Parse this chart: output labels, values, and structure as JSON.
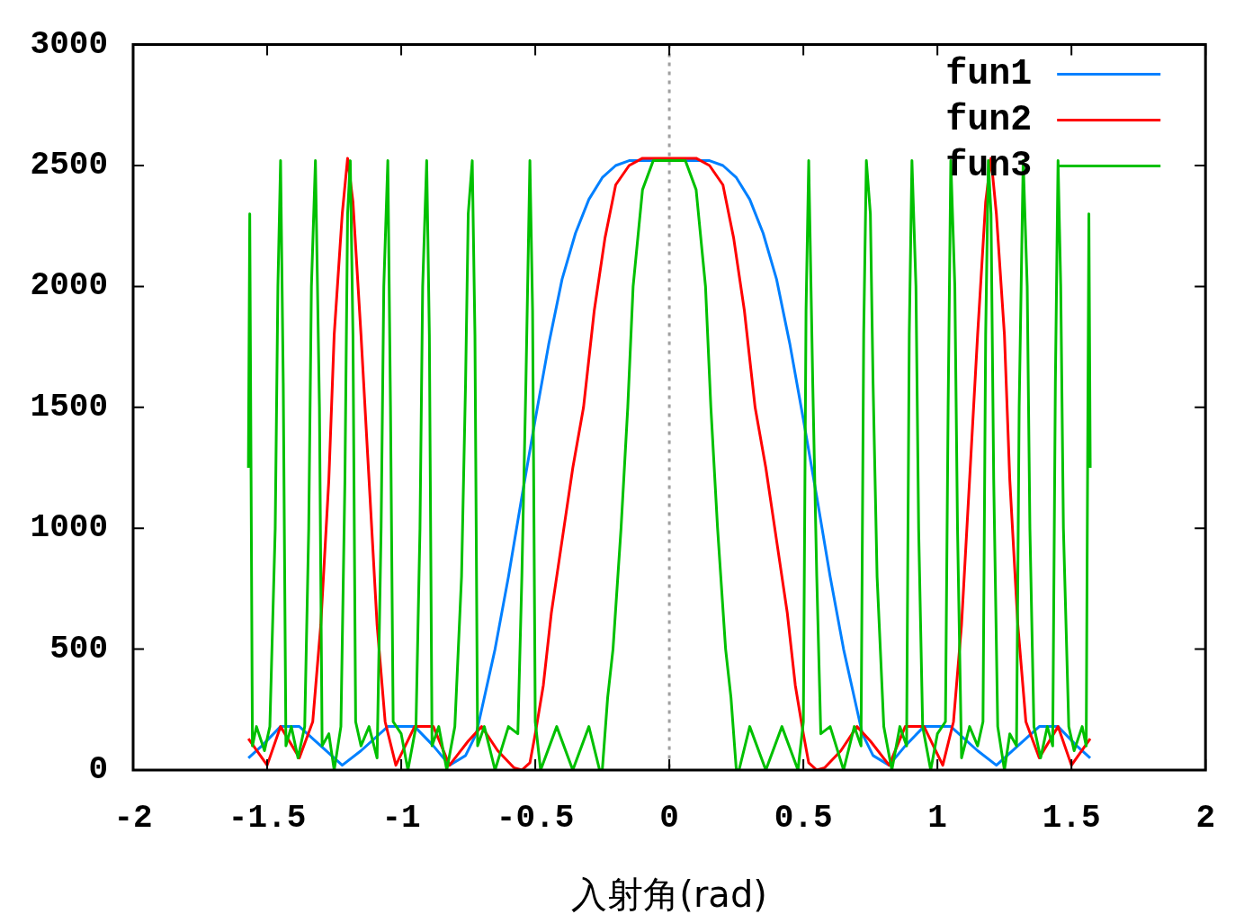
{
  "chart_data": {
    "type": "line",
    "xlabel": "入射角(rad)",
    "xlim": [
      -2,
      2
    ],
    "xticks": [
      -2,
      -1.5,
      -1,
      -0.5,
      0,
      0.5,
      1,
      1.5,
      2
    ],
    "ylim": [
      0,
      3000
    ],
    "yticks": [
      0,
      500,
      1000,
      1500,
      2000,
      2500,
      3000
    ],
    "grid": false,
    "legend": "top right",
    "marker": "none",
    "line_style": "solid",
    "ref_lines": [
      {
        "axis": "x",
        "value": 0,
        "color": "#a0a0a0",
        "line_style": "dotted"
      }
    ],
    "series": [
      {
        "name": "fun1",
        "color": "#0080ff",
        "x": [
          -1.57,
          -1.52,
          -1.45,
          -1.38,
          -1.3,
          -1.22,
          -1.15,
          -1.05,
          -0.95,
          -0.88,
          -0.82,
          -0.76,
          -0.72,
          -0.7,
          -0.65,
          -0.6,
          -0.55,
          -0.5,
          -0.45,
          -0.4,
          -0.35,
          -0.3,
          -0.25,
          -0.2,
          -0.15,
          -0.1,
          0,
          0.1,
          0.15,
          0.2,
          0.25,
          0.3,
          0.35,
          0.4,
          0.45,
          0.5,
          0.55,
          0.6,
          0.65,
          0.7,
          0.72,
          0.76,
          0.82,
          0.88,
          0.95,
          1.05,
          1.15,
          1.22,
          1.3,
          1.38,
          1.45,
          1.52,
          1.57
        ],
        "values": [
          50,
          100,
          180,
          180,
          100,
          20,
          80,
          180,
          180,
          100,
          20,
          60,
          150,
          250,
          500,
          800,
          1130,
          1450,
          1760,
          2030,
          2220,
          2360,
          2450,
          2500,
          2520,
          2520,
          2520,
          2520,
          2520,
          2500,
          2450,
          2360,
          2220,
          2030,
          1760,
          1450,
          1130,
          800,
          500,
          250,
          150,
          60,
          20,
          100,
          180,
          180,
          80,
          20,
          100,
          180,
          180,
          100,
          50
        ]
      },
      {
        "name": "fun2",
        "color": "#ff0000",
        "x": [
          -1.57,
          -1.5,
          -1.45,
          -1.38,
          -1.33,
          -1.3,
          -1.27,
          -1.25,
          -1.22,
          -1.2,
          -1.18,
          -1.15,
          -1.12,
          -1.09,
          -1.06,
          -1.02,
          -0.95,
          -0.88,
          -0.82,
          -0.75,
          -0.7,
          -0.64,
          -0.58,
          -0.55,
          -0.52,
          -0.5,
          -0.47,
          -0.44,
          -0.4,
          -0.36,
          -0.32,
          -0.28,
          -0.24,
          -0.2,
          -0.15,
          -0.1,
          0,
          0.1,
          0.15,
          0.2,
          0.24,
          0.28,
          0.32,
          0.36,
          0.4,
          0.44,
          0.47,
          0.5,
          0.52,
          0.55,
          0.58,
          0.64,
          0.7,
          0.75,
          0.82,
          0.88,
          0.95,
          1.02,
          1.06,
          1.09,
          1.12,
          1.15,
          1.18,
          1.2,
          1.22,
          1.25,
          1.27,
          1.3,
          1.33,
          1.38,
          1.45,
          1.5,
          1.57
        ],
        "values": [
          130,
          20,
          180,
          50,
          200,
          600,
          1200,
          1800,
          2300,
          2530,
          2350,
          1800,
          1200,
          600,
          200,
          20,
          180,
          180,
          20,
          120,
          180,
          80,
          10,
          0,
          30,
          150,
          350,
          650,
          950,
          1250,
          1500,
          1900,
          2200,
          2420,
          2500,
          2530,
          2530,
          2530,
          2500,
          2420,
          2200,
          1900,
          1500,
          1250,
          950,
          650,
          350,
          150,
          30,
          0,
          10,
          80,
          180,
          120,
          20,
          180,
          180,
          20,
          200,
          600,
          1200,
          1800,
          2350,
          2530,
          2300,
          1800,
          1200,
          600,
          200,
          50,
          180,
          20,
          130
        ]
      },
      {
        "name": "fun3",
        "color": "#00c000",
        "x": [
          -1.57,
          -1.565,
          -1.555,
          -1.54,
          -1.51,
          -1.49,
          -1.47,
          -1.46,
          -1.45,
          -1.44,
          -1.43,
          -1.41,
          -1.385,
          -1.36,
          -1.345,
          -1.335,
          -1.32,
          -1.305,
          -1.295,
          -1.27,
          -1.25,
          -1.225,
          -1.21,
          -1.2,
          -1.19,
          -1.18,
          -1.17,
          -1.15,
          -1.12,
          -1.09,
          -1.075,
          -1.065,
          -1.05,
          -1.04,
          -1.03,
          -1.0,
          -0.975,
          -0.945,
          -0.93,
          -0.92,
          -0.905,
          -0.895,
          -0.885,
          -0.86,
          -0.83,
          -0.8,
          -0.775,
          -0.76,
          -0.75,
          -0.735,
          -0.725,
          -0.715,
          -0.69,
          -0.65,
          -0.6,
          -0.565,
          -0.55,
          -0.535,
          -0.52,
          -0.51,
          -0.5,
          -0.48,
          -0.42,
          -0.36,
          -0.3,
          -0.26,
          -0.25,
          -0.23,
          -0.21,
          -0.18,
          -0.155,
          -0.135,
          -0.1,
          -0.06,
          0,
          0.06,
          0.1,
          0.135,
          0.155,
          0.18,
          0.21,
          0.23,
          0.25,
          0.26,
          0.3,
          0.36,
          0.42,
          0.48,
          0.5,
          0.51,
          0.52,
          0.535,
          0.55,
          0.565,
          0.6,
          0.65,
          0.69,
          0.715,
          0.725,
          0.735,
          0.75,
          0.76,
          0.775,
          0.8,
          0.83,
          0.86,
          0.885,
          0.895,
          0.905,
          0.92,
          0.93,
          0.945,
          0.975,
          1.0,
          1.03,
          1.04,
          1.05,
          1.065,
          1.075,
          1.09,
          1.12,
          1.15,
          1.17,
          1.18,
          1.19,
          1.2,
          1.21,
          1.225,
          1.25,
          1.27,
          1.295,
          1.305,
          1.32,
          1.335,
          1.345,
          1.36,
          1.385,
          1.41,
          1.43,
          1.44,
          1.45,
          1.46,
          1.47,
          1.49,
          1.51,
          1.54,
          1.555,
          1.565,
          1.57
        ],
        "values": [
          1250,
          2300,
          100,
          180,
          80,
          180,
          1000,
          2000,
          2520,
          1600,
          100,
          180,
          50,
          180,
          1000,
          2000,
          2520,
          1500,
          100,
          150,
          0,
          180,
          1200,
          2300,
          2520,
          1800,
          200,
          100,
          180,
          50,
          1000,
          2000,
          2520,
          1500,
          200,
          150,
          0,
          180,
          1000,
          2000,
          2520,
          1800,
          100,
          180,
          0,
          180,
          800,
          1600,
          2300,
          2520,
          1800,
          100,
          180,
          0,
          180,
          150,
          800,
          1600,
          2520,
          1900,
          200,
          0,
          180,
          0,
          180,
          0,
          0,
          300,
          500,
          1000,
          1500,
          2000,
          2400,
          2520,
          2520,
          2520,
          2400,
          2000,
          1500,
          1000,
          500,
          300,
          0,
          0,
          180,
          0,
          180,
          0,
          200,
          1900,
          2520,
          1600,
          800,
          150,
          180,
          0,
          180,
          100,
          1800,
          2520,
          2300,
          1600,
          800,
          180,
          0,
          180,
          100,
          1800,
          2520,
          2000,
          1000,
          180,
          0,
          150,
          200,
          1500,
          2520,
          2000,
          1000,
          50,
          180,
          100,
          200,
          1800,
          2520,
          2300,
          1200,
          180,
          0,
          150,
          100,
          1500,
          2520,
          2000,
          1000,
          180,
          50,
          180,
          100,
          1600,
          2520,
          2000,
          1000,
          180,
          80,
          180,
          100,
          2300,
          1250
        ]
      }
    ]
  }
}
